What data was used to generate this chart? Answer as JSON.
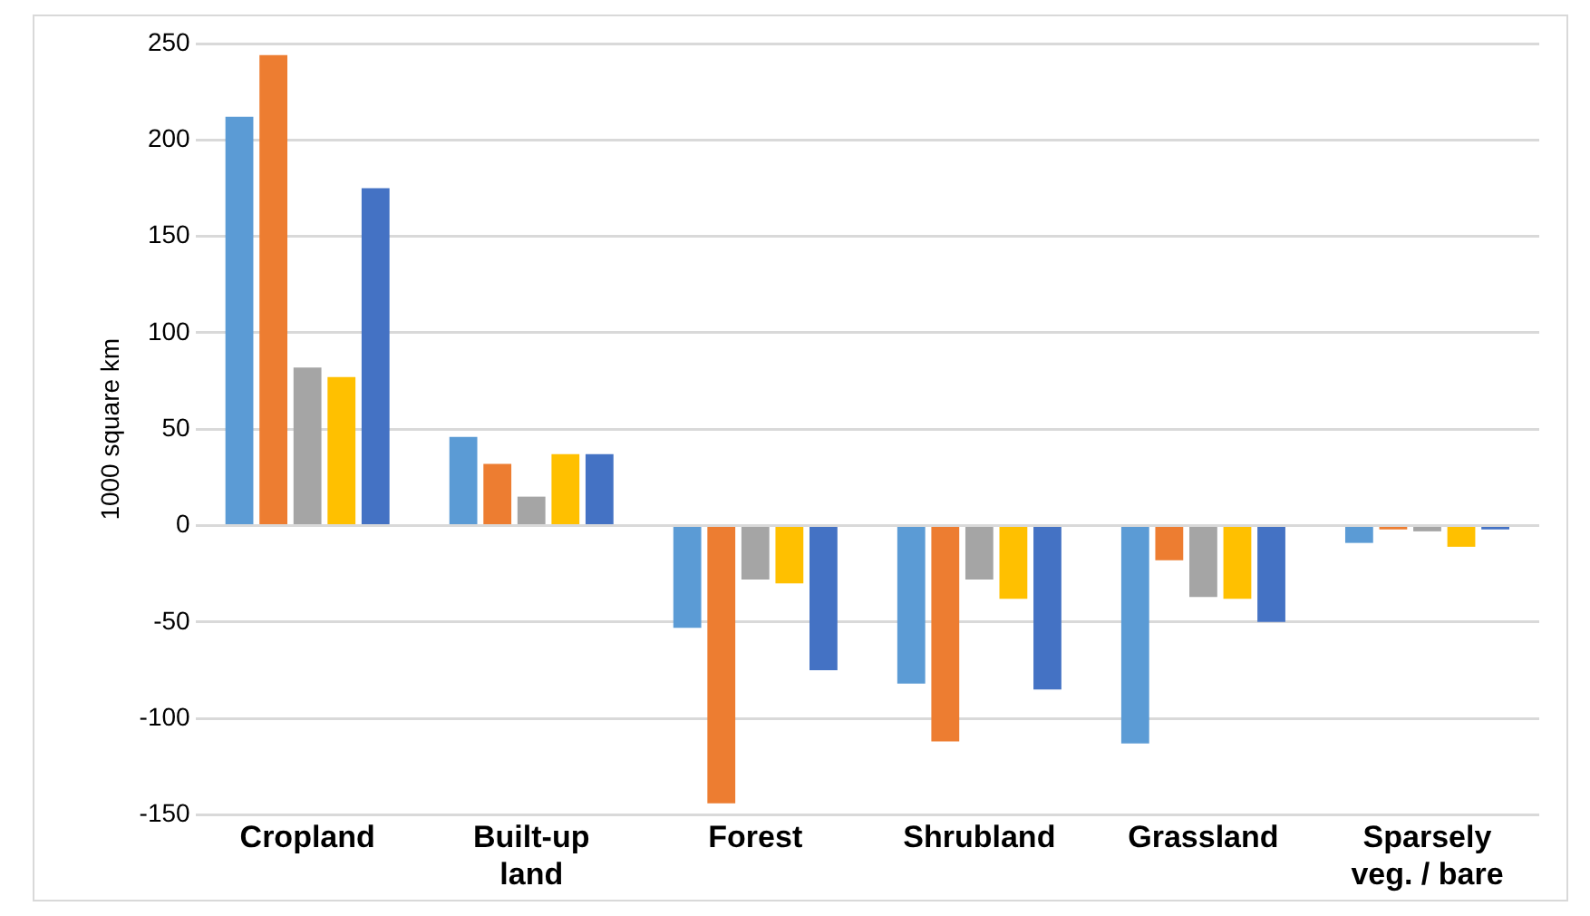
{
  "chart_data": {
    "type": "bar",
    "ylabel": "1000 square km",
    "categories": [
      "Cropland",
      "Built-up land",
      "Forest",
      "Shrubland",
      "Grassland",
      "Sparsely veg. / bare"
    ],
    "series": [
      {
        "color": "#5b9bd5",
        "values": [
          212,
          46,
          -53,
          -82,
          -113,
          -9
        ]
      },
      {
        "color": "#ed7d31",
        "values": [
          244,
          32,
          -144,
          -112,
          -18,
          -2
        ]
      },
      {
        "color": "#a5a5a5",
        "values": [
          82,
          15,
          -28,
          -28,
          -37,
          -3
        ]
      },
      {
        "color": "#ffc000",
        "values": [
          77,
          37,
          -30,
          -38,
          -38,
          -11
        ]
      },
      {
        "color": "#4472c4",
        "values": [
          175,
          37,
          -75,
          -85,
          -50,
          -2
        ]
      }
    ],
    "ylim": [
      -150,
      250
    ],
    "yticks": [
      -150,
      -100,
      -50,
      0,
      50,
      100,
      150,
      200,
      250
    ],
    "grid": "y",
    "legend": false
  }
}
